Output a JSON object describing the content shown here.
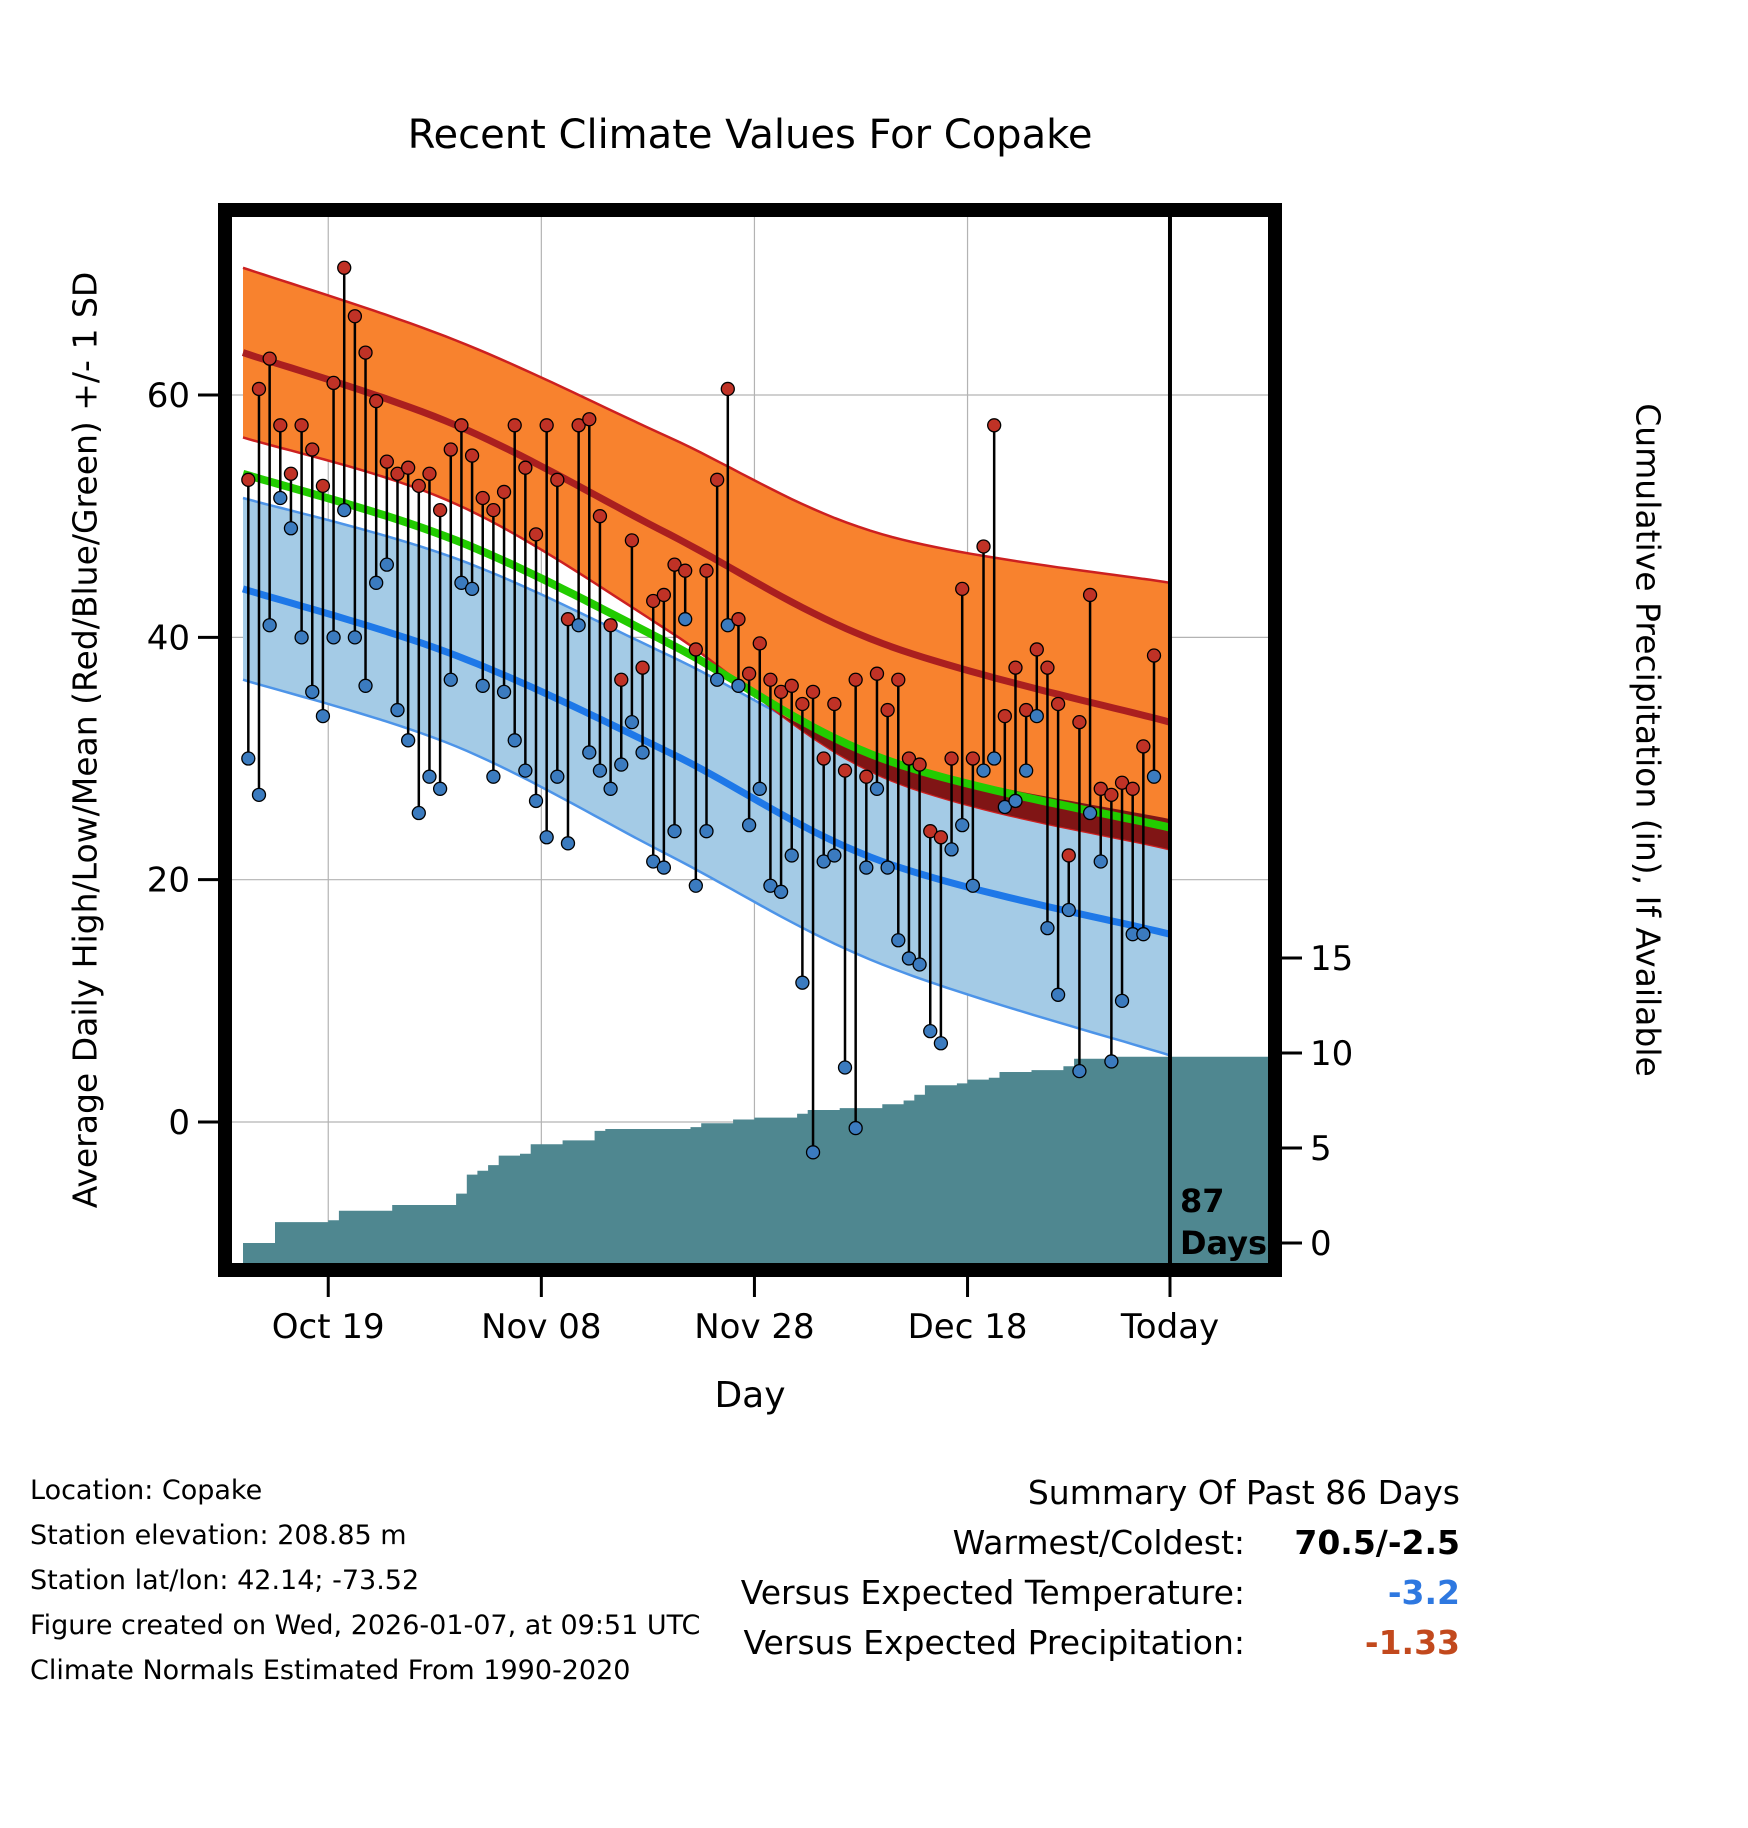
{
  "title": "Recent Climate Values For Copake",
  "axes": {
    "y_left_label": "Average Daily High/Low/Mean (Red/Blue/Green) +/- 1 SD",
    "y_right_label": "Cumulative Precipitation (in), If Available",
    "x_label": "Day"
  },
  "footer": {
    "location": "Location: Copake",
    "elevation": "Station elevation: 208.85 m",
    "latlon": "Station lat/lon: 42.14; -73.52",
    "created": "Figure created on Wed, 2026-01-07, at 09:51 UTC",
    "normals": "Climate Normals Estimated From 1990-2020"
  },
  "summary": {
    "title": "Summary Of Past 86 Days",
    "rows": [
      {
        "label": "Warmest/Coldest:",
        "value": "70.5/-2.5",
        "color": "#000000"
      },
      {
        "label": "Versus Expected Temperature:",
        "value": "-3.2",
        "color": "#2E78E0"
      },
      {
        "label": "Versus Expected Precipitation:",
        "value": "-1.33",
        "color": "#C2491D"
      }
    ]
  },
  "chart_data": {
    "type": "line",
    "title": "Recent Climate Values For Copake",
    "xlabel": "Day",
    "ylabel_left": "Average Daily High/Low/Mean (Red/Blue/Green) +/- 1 SD",
    "ylabel_right": "Cumulative Precipitation (in), If Available",
    "x_ticks": [
      {
        "day": 8,
        "label": "Oct 19"
      },
      {
        "day": 28,
        "label": "Nov 08"
      },
      {
        "day": 48,
        "label": "Nov 28"
      },
      {
        "day": 68,
        "label": "Dec 18"
      },
      {
        "day": 87,
        "label": "Today"
      }
    ],
    "y_ticks_temp": [
      0,
      20,
      40,
      60
    ],
    "y_ticks_precip": [
      0,
      5,
      10,
      15
    ],
    "today_marker": {
      "day": 87,
      "label_top": "87",
      "label_bottom": "Days"
    },
    "normals": {
      "days": [
        0,
        20,
        40,
        60,
        87
      ],
      "high_upper": [
        70.5,
        64.5,
        56.5,
        48.5,
        44.5
      ],
      "high_mean": [
        63.5,
        57.5,
        48.5,
        39.5,
        33
      ],
      "high_lower": [
        56.5,
        51,
        40.5,
        28.5,
        22.5
      ],
      "mean": [
        53.5,
        48,
        39.5,
        30,
        24.3
      ],
      "low_upper": [
        51.5,
        46.5,
        38.5,
        30,
        25
      ],
      "low_mean": [
        44,
        38.5,
        30.5,
        21.5,
        15.5
      ],
      "low_lower": [
        36.5,
        31,
        22,
        13,
        5.5
      ]
    },
    "daily": {
      "note": "86 days of observed high/low temperatures, estimated from plot",
      "high": [
        53,
        60.5,
        63,
        57.5,
        53.5,
        57.5,
        55.5,
        52.5,
        61,
        70.5,
        66.5,
        63.5,
        59.5,
        54.5,
        53.5,
        54,
        52.5,
        53.5,
        50.5,
        55.5,
        57.5,
        55,
        51.5,
        50.5,
        52,
        57.5,
        54,
        48.5,
        57.5,
        53,
        41.5,
        57.5,
        58,
        50,
        41,
        36.5,
        48,
        37.5,
        43,
        43.5,
        46,
        45.5,
        39,
        45.5,
        53,
        60.5,
        41.5,
        37,
        39.5,
        36.5,
        35.5,
        36,
        34.5,
        35.5,
        30,
        34.5,
        29,
        36.5,
        28.5,
        37,
        34,
        36.5,
        30,
        29.5,
        24,
        23.5,
        30,
        44,
        30,
        47.5,
        57.5,
        33.5,
        37.5,
        34,
        39,
        37.5,
        34.5,
        22,
        33,
        43.5,
        27.5,
        27,
        28,
        27.5,
        31,
        38.5
      ],
      "low": [
        30,
        27,
        41,
        51.5,
        49,
        40,
        35.5,
        33.5,
        40,
        50.5,
        40,
        36,
        44.5,
        46,
        34,
        31.5,
        25.5,
        28.5,
        27.5,
        36.5,
        44.5,
        44,
        36,
        28.5,
        35.5,
        31.5,
        29,
        26.5,
        23.5,
        28.5,
        23,
        41,
        30.5,
        29,
        27.5,
        29.5,
        33,
        30.5,
        21.5,
        21,
        24,
        41.5,
        19.5,
        24,
        36.5,
        41,
        36,
        24.5,
        27.5,
        19.5,
        19,
        22,
        11.5,
        -2.5,
        21.5,
        22,
        4.5,
        -0.5,
        21,
        27.5,
        21,
        15,
        13.5,
        13,
        7.5,
        6.5,
        22.5,
        24.5,
        19.5,
        29,
        30,
        26,
        26.5,
        29,
        33.5,
        16,
        10.5,
        17.5,
        4.2,
        25.5,
        21.5,
        5,
        10,
        15.5,
        15.5,
        28.5
      ]
    },
    "cumulative_precip": {
      "end_value": 9.8,
      "steps": [
        [
          0,
          0
        ],
        [
          2,
          0
        ],
        [
          3,
          1.1
        ],
        [
          8,
          1.2
        ],
        [
          9,
          1.7
        ],
        [
          13,
          1.7
        ],
        [
          14,
          2.0
        ],
        [
          19,
          2.0
        ],
        [
          20,
          2.6
        ],
        [
          21,
          3.6
        ],
        [
          22,
          3.8
        ],
        [
          23,
          4.1
        ],
        [
          24,
          4.6
        ],
        [
          26,
          4.7
        ],
        [
          27,
          5.2
        ],
        [
          30,
          5.4
        ],
        [
          33,
          5.9
        ],
        [
          34,
          6.0
        ],
        [
          42,
          6.1
        ],
        [
          43,
          6.3
        ],
        [
          46,
          6.5
        ],
        [
          48,
          6.6
        ],
        [
          52,
          6.8
        ],
        [
          53,
          7.0
        ],
        [
          56,
          7.1
        ],
        [
          60,
          7.3
        ],
        [
          62,
          7.5
        ],
        [
          63,
          7.8
        ],
        [
          64,
          8.3
        ],
        [
          67,
          8.4
        ],
        [
          68,
          8.6
        ],
        [
          70,
          8.7
        ],
        [
          71,
          9.0
        ],
        [
          74,
          9.1
        ],
        [
          77,
          9.3
        ],
        [
          78,
          9.7
        ],
        [
          82,
          9.8
        ],
        [
          87,
          9.8
        ]
      ]
    },
    "colors": {
      "high_band": "#F8822E",
      "high_edge": "#CC2020",
      "high_mean": "#AA1F1F",
      "low_band": "#A4CBE6",
      "low_edge": "#4D94E8",
      "low_mean": "#1E78E8",
      "overlap_band": "#801515",
      "mean_line": "#22CC00",
      "precip_area": "#4F8790",
      "bar": "#000000",
      "dot_high": "#C03226",
      "dot_low": "#3B7BBF",
      "grid": "#b3b3b3",
      "border": "#000000"
    }
  }
}
